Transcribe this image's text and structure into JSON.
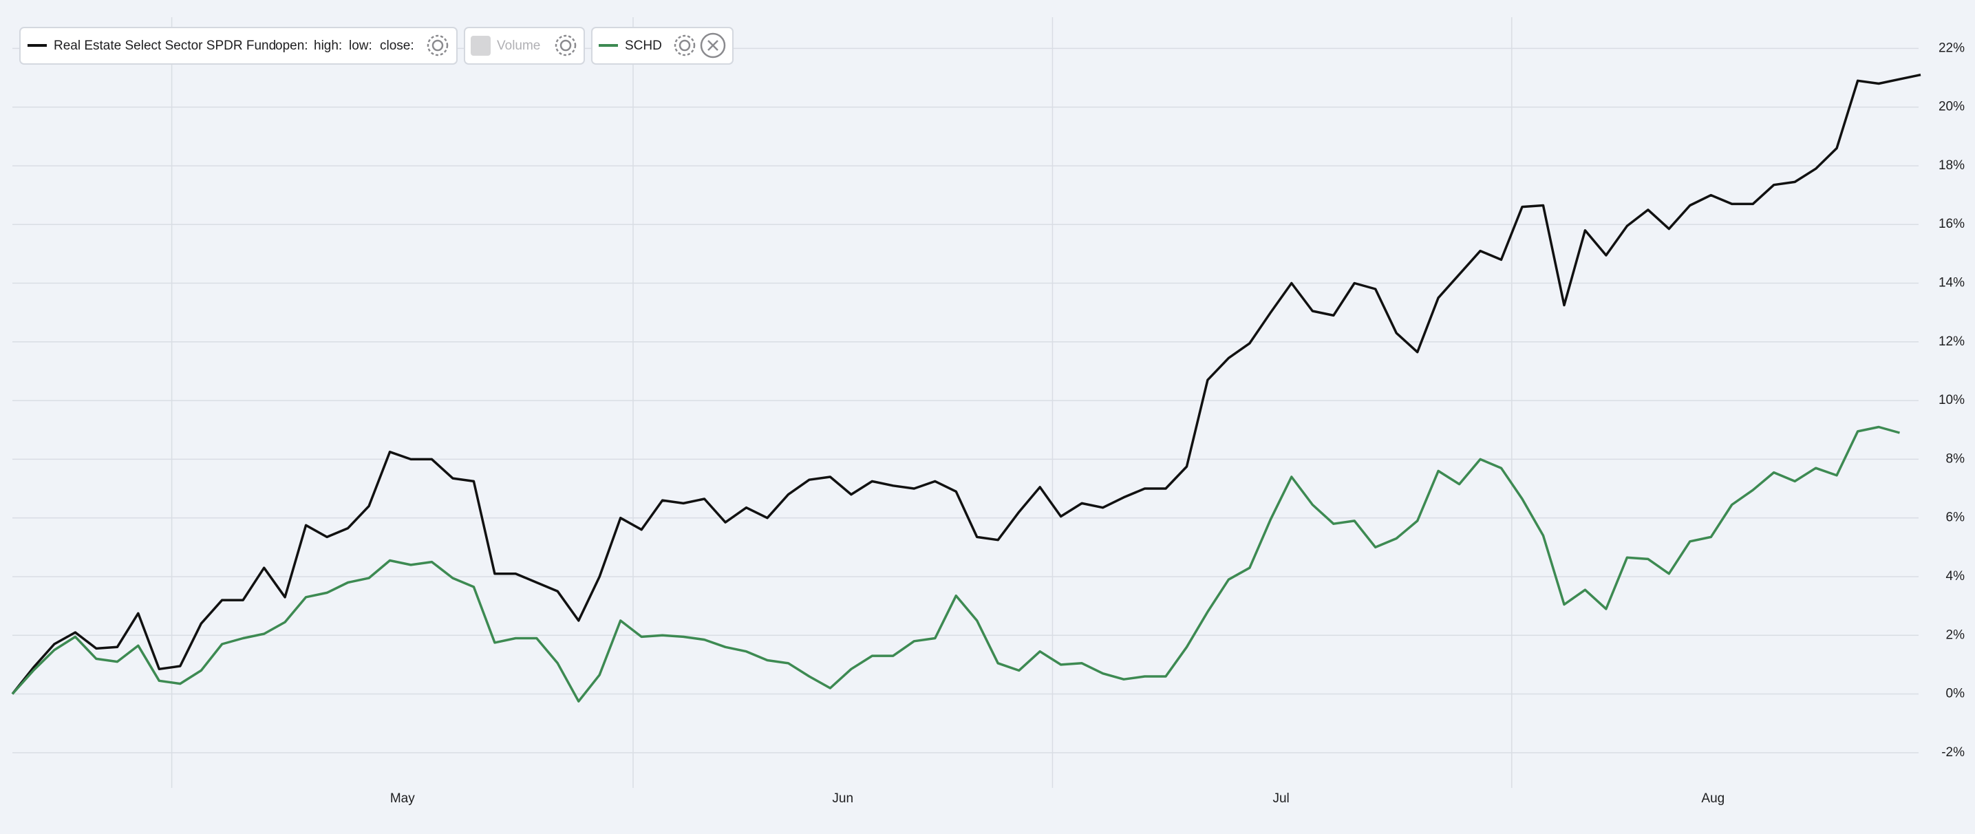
{
  "chart_data": {
    "type": "line",
    "series": [
      {
        "name": "Real Estate Select Sector SPDR Fund",
        "color": "#111111",
        "values": [
          0,
          0.9,
          1.7,
          2.1,
          1.55,
          1.6,
          2.75,
          0.85,
          0.95,
          2.4,
          3.2,
          3.2,
          4.3,
          3.3,
          5.75,
          5.35,
          5.65,
          6.4,
          8.25,
          8.0,
          8.0,
          7.35,
          7.25,
          4.1,
          4.1,
          3.8,
          3.5,
          2.5,
          4.0,
          6.0,
          5.6,
          6.6,
          6.5,
          6.65,
          5.85,
          6.35,
          6.0,
          6.8,
          7.3,
          7.4,
          6.8,
          7.25,
          7.1,
          7.0,
          7.25,
          6.9,
          5.35,
          5.25,
          6.2,
          7.05,
          6.05,
          6.5,
          6.35,
          6.7,
          7.0,
          7.0,
          7.75,
          10.7,
          11.45,
          11.95,
          13.0,
          14.0,
          13.05,
          12.9,
          14.0,
          13.8,
          12.3,
          11.65,
          13.5,
          14.3,
          15.1,
          14.8,
          16.6,
          16.65,
          13.25,
          15.8,
          14.95,
          15.95,
          16.5,
          15.85,
          16.65,
          17.0,
          16.7,
          16.7,
          17.35,
          17.45,
          17.9,
          18.6,
          20.9,
          20.8,
          20.95,
          21.1
        ]
      },
      {
        "name": "SCHD",
        "color": "#3d8a52",
        "values": [
          0,
          0.8,
          1.5,
          1.95,
          1.2,
          1.1,
          1.65,
          0.45,
          0.35,
          0.8,
          1.7,
          1.9,
          2.05,
          2.45,
          3.3,
          3.45,
          3.8,
          3.95,
          4.55,
          4.4,
          4.5,
          3.95,
          3.65,
          1.75,
          1.9,
          1.9,
          1.05,
          -0.25,
          0.65,
          2.5,
          1.95,
          2.0,
          1.95,
          1.85,
          1.6,
          1.45,
          1.15,
          1.05,
          0.6,
          0.2,
          0.85,
          1.3,
          1.3,
          1.8,
          1.9,
          3.35,
          2.5,
          1.05,
          0.8,
          1.45,
          1.0,
          1.05,
          0.7,
          0.5,
          0.6,
          0.6,
          1.6,
          2.8,
          3.9,
          4.3,
          5.95,
          7.4,
          6.45,
          5.8,
          5.9,
          5.0,
          5.3,
          5.9,
          7.6,
          7.15,
          8.0,
          7.7,
          6.65,
          5.4,
          3.05,
          3.55,
          2.9,
          4.65,
          4.6,
          4.1,
          5.2,
          5.35,
          6.45,
          6.95,
          7.55,
          7.25,
          7.7,
          7.45,
          8.95,
          9.1,
          8.9
        ]
      }
    ],
    "legend": {
      "ohlc_labels": [
        "open:",
        "high:",
        "low:",
        "close:"
      ],
      "volume": "Volume"
    },
    "xlim": [
      0,
      91
    ],
    "xticks": [
      {
        "value": 18.6,
        "label": "May"
      },
      {
        "value": 39.6,
        "label": "Jun"
      },
      {
        "value": 60.5,
        "label": "Jul"
      },
      {
        "value": 81.1,
        "label": "Aug"
      }
    ],
    "xgrid": [
      7.6,
      29.6,
      49.6,
      71.5
    ],
    "ylim": [
      -3.2,
      23.65
    ],
    "yticks": [
      {
        "value": -2,
        "label": "-2%"
      },
      {
        "value": 0,
        "label": "0%"
      },
      {
        "value": 2,
        "label": "2%"
      },
      {
        "value": 4,
        "label": "4%"
      },
      {
        "value": 6,
        "label": "6%"
      },
      {
        "value": 8,
        "label": "8%"
      },
      {
        "value": 10,
        "label": "10%"
      },
      {
        "value": 12,
        "label": "12%"
      },
      {
        "value": 14,
        "label": "14%"
      },
      {
        "value": 16,
        "label": "16%"
      },
      {
        "value": 18,
        "label": "18%"
      },
      {
        "value": 20,
        "label": "20%"
      },
      {
        "value": 22,
        "label": "22%"
      }
    ],
    "grid": true
  }
}
